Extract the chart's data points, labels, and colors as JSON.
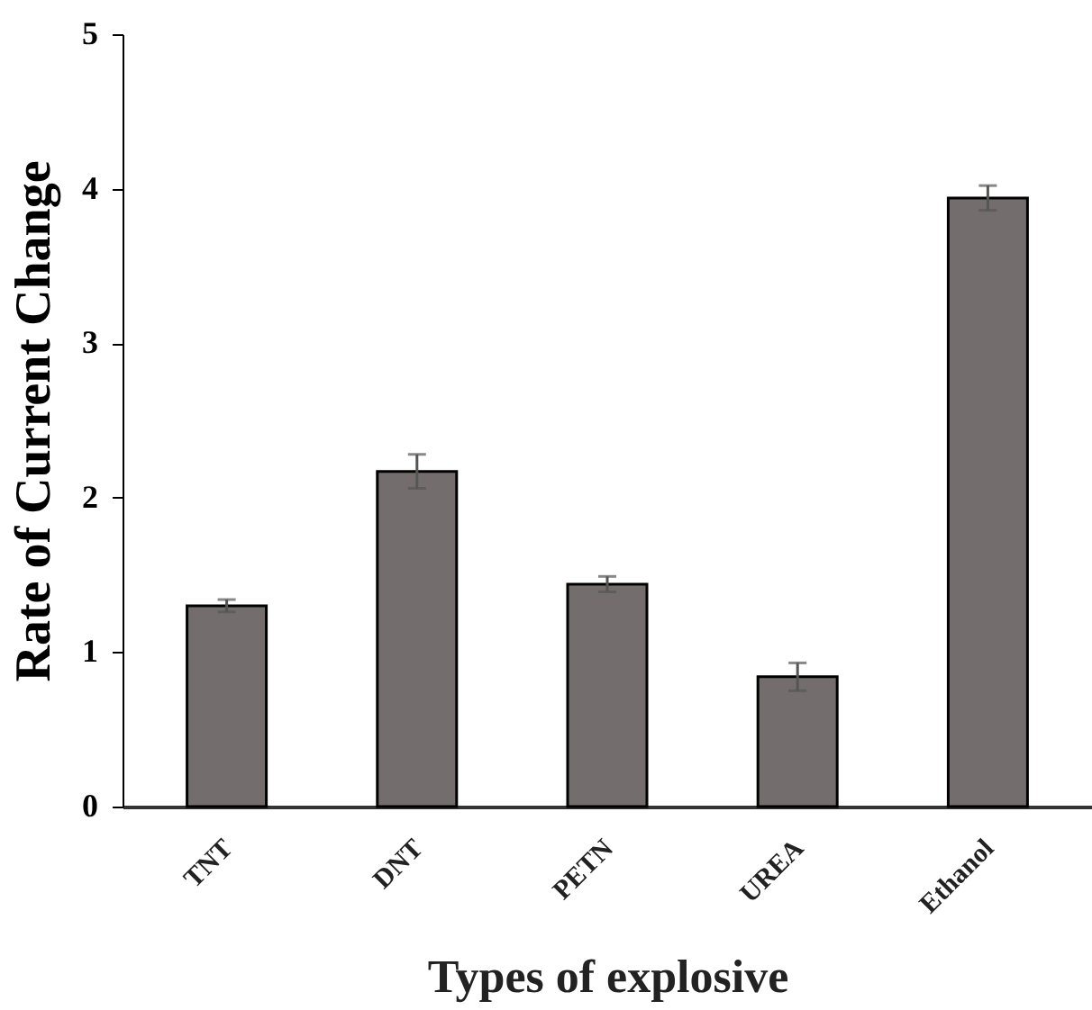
{
  "chart_data": {
    "type": "bar",
    "xlabel": "Types of explosive",
    "ylabel": "Rate of Current Change",
    "categories": [
      "TNT",
      "DNT",
      "PETN",
      "UREA",
      "Ethanol"
    ],
    "values": [
      1.3,
      2.17,
      1.44,
      0.84,
      3.94
    ],
    "errors": [
      0.04,
      0.11,
      0.05,
      0.09,
      0.08
    ],
    "color": "#736e6d",
    "ylim": [
      0,
      5
    ],
    "yticks": [
      0,
      1,
      2,
      3,
      4,
      5
    ],
    "grid": false
  }
}
